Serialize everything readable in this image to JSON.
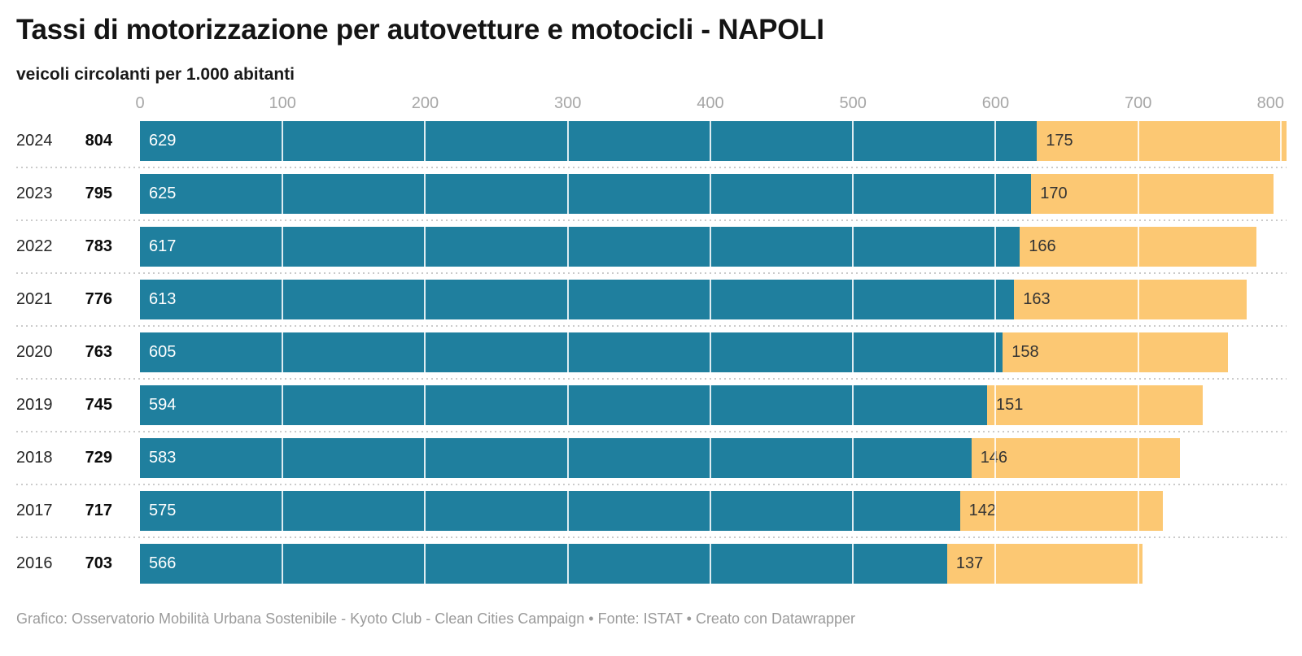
{
  "header": {
    "title": "Tassi di motorizzazione per autovetture e motocicli - NAPOLI",
    "subtitle": "veicoli circolanti per 1.000 abitanti"
  },
  "footer": {
    "credit": "Grafico: Osservatorio Mobilità Urbana Sostenibile - Kyoto Club - Clean Cities Campaign • Fonte: ISTAT • Creato con Datawrapper"
  },
  "chart_data": {
    "type": "bar",
    "orientation": "horizontal",
    "stacked": true,
    "title": "Tassi di motorizzazione per autovetture e motocicli - NAPOLI",
    "subtitle": "veicoli circolanti per 1.000 abitanti",
    "categories": [
      "2024",
      "2023",
      "2022",
      "2021",
      "2020",
      "2019",
      "2018",
      "2017",
      "2016"
    ],
    "totals": [
      804,
      795,
      783,
      776,
      763,
      745,
      729,
      717,
      703
    ],
    "series": [
      {
        "name": "autovetture",
        "color": "#1f7f9e",
        "label_color": "#ffffff",
        "values": [
          629,
          625,
          617,
          613,
          605,
          594,
          583,
          575,
          566
        ]
      },
      {
        "name": "motocicli",
        "color": "#fcc873",
        "label_color": "#333333",
        "values": [
          175,
          170,
          166,
          163,
          158,
          151,
          146,
          142,
          137
        ]
      }
    ],
    "xticks": [
      0,
      100,
      200,
      300,
      400,
      500,
      600,
      700,
      800
    ],
    "xmax": 804,
    "xlim": [
      0,
      804
    ],
    "grid": "vertical-white-lines-over-bars",
    "legend": "none",
    "separator_style": "dotted-between-rows",
    "colors": {
      "tick_label": "#a6a6a6",
      "year_label": "#262626",
      "total_label": "#0c0c0c",
      "separator": "#cbcbcb",
      "footer_text": "#9a9a9a"
    }
  }
}
